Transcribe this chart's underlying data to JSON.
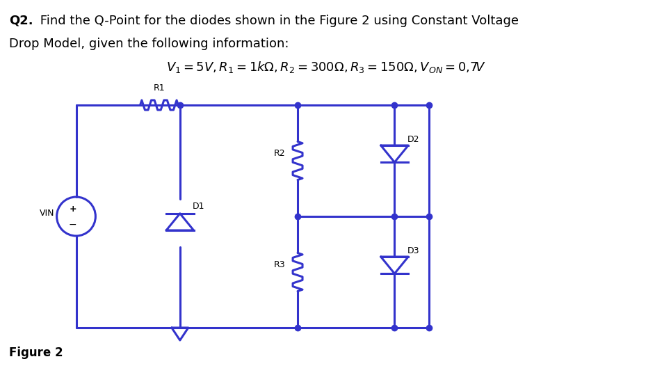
{
  "title_q2": "Q2.",
  "title_text": " Find the Q-Point for the diodes shown in the Figure 2 using Constant Voltage",
  "title_line2": "Drop Model, given the following information:",
  "formula": "$V_1 = 5V, R_1 = 1k\\Omega, R_2 = 300\\Omega, R_3 = 150\\Omega, V_{ON} = 0,7V$",
  "figure_label": "Figure 2",
  "circuit_color": "#3333cc",
  "dot_color": "#3333cc",
  "background": "#ffffff",
  "line_width": 2.2
}
